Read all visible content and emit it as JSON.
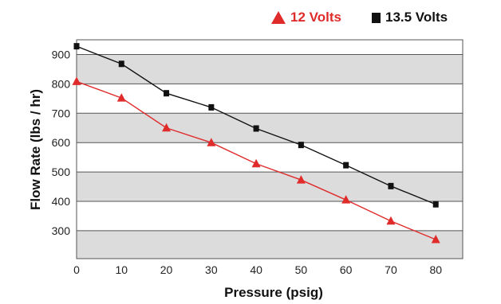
{
  "chart_data": {
    "type": "line",
    "title": "",
    "xlabel": "Pressure (psig)",
    "ylabel": "Flow Rate (lbs / hr)",
    "x": [
      0,
      10,
      20,
      30,
      40,
      50,
      60,
      70,
      80
    ],
    "x_ticks": [
      0,
      10,
      20,
      30,
      40,
      50,
      60,
      70,
      80
    ],
    "y_ticks": [
      300,
      400,
      500,
      600,
      700,
      800,
      900
    ],
    "xlim": [
      0,
      86
    ],
    "ylim": [
      205,
      950
    ],
    "grid": true,
    "legend_position": "top-right",
    "series": [
      {
        "name": "12 Volts",
        "color": "#e02b2b",
        "marker": "triangle",
        "values": [
          808,
          752,
          650,
          600,
          528,
          473,
          405,
          333,
          270
        ]
      },
      {
        "name": "13.5 Volts",
        "color": "#111111",
        "marker": "square",
        "values": [
          928,
          868,
          768,
          720,
          648,
          592,
          523,
          452,
          390
        ]
      }
    ]
  },
  "colors": {
    "band_gray": "#dcdcdc",
    "band_white": "#ffffff",
    "line_12v": "#e02b2b",
    "line_135v": "#111111"
  }
}
